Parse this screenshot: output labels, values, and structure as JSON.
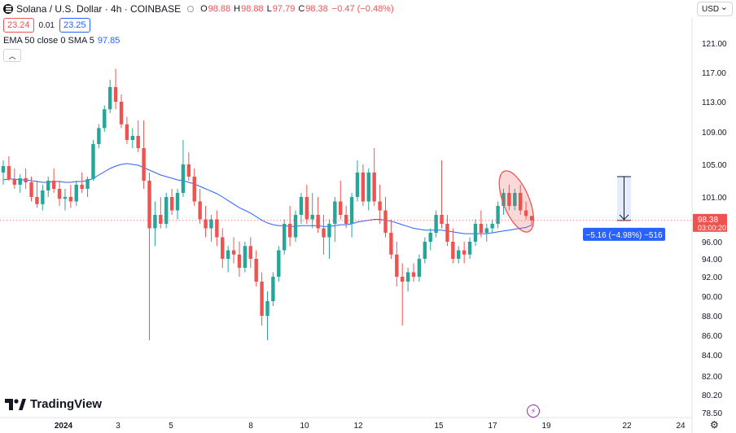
{
  "header": {
    "title": "Solana / U.S. Dollar · 4h · COINBASE",
    "open_label": "O",
    "open": "98.88",
    "high_label": "H",
    "high": "98.88",
    "low_label": "L",
    "low": "97.79",
    "close_label": "C",
    "close": "98.38",
    "change": "−0.47 (−0.48%)"
  },
  "trade": {
    "sell": "23.24",
    "spread": "0.01",
    "buy": "23.25"
  },
  "indicator": {
    "label": "EMA 50 close 0 SMA 5",
    "value": "97.85"
  },
  "currency": "USD",
  "brand": "TradingView",
  "colors": {
    "up": "#26a69a",
    "down": "#ef5350",
    "ema": "#2962ff",
    "measure": "#2962ff"
  },
  "icons": [
    "solana-logo-icon",
    "collapse-chevron-icon",
    "tradingview-logo-icon",
    "lightning-icon",
    "settings-gear-icon"
  ],
  "chart_data": {
    "type": "candlestick",
    "timeframe": "4h",
    "y_axis_ticks": [
      "121.00",
      "117.00",
      "113.00",
      "109.00",
      "105.00",
      "101.00",
      "96.00",
      "94.00",
      "92.00",
      "90.00",
      "88.00",
      "86.00",
      "84.00",
      "82.00",
      "80.20",
      "78.50"
    ],
    "x_axis_ticks": [
      "2024",
      "3",
      "5",
      "8",
      "10",
      "12",
      "15",
      "17",
      "19",
      "22",
      "24"
    ],
    "last_price": "98.38",
    "countdown": "03:00:20",
    "measurement_label": "−5.16 (−4.98%) −516",
    "candles": [
      [
        104.0,
        105.5,
        102.5,
        104.8
      ],
      [
        104.8,
        106.0,
        103.0,
        103.2
      ],
      [
        103.2,
        104.5,
        102.0,
        102.5
      ],
      [
        102.5,
        103.8,
        101.5,
        103.3
      ],
      [
        103.3,
        104.5,
        102.0,
        102.8
      ],
      [
        102.8,
        103.5,
        100.5,
        101.0
      ],
      [
        101.0,
        103.0,
        99.8,
        100.2
      ],
      [
        100.2,
        102.5,
        99.5,
        101.8
      ],
      [
        101.8,
        103.5,
        101.0,
        103.0
      ],
      [
        103.0,
        104.5,
        101.5,
        102.0
      ],
      [
        102.0,
        103.0,
        100.0,
        100.8
      ],
      [
        100.8,
        102.0,
        99.5,
        101.0
      ],
      [
        101.0,
        102.5,
        99.8,
        100.5
      ],
      [
        100.5,
        103.0,
        100.0,
        102.5
      ],
      [
        102.5,
        104.0,
        101.5,
        102.0
      ],
      [
        102.0,
        103.5,
        101.0,
        103.2
      ],
      [
        103.2,
        108.0,
        103.0,
        107.5
      ],
      [
        107.5,
        110.0,
        107.0,
        109.5
      ],
      [
        109.5,
        112.5,
        109.0,
        112.0
      ],
      [
        112.0,
        116.0,
        111.5,
        115.0
      ],
      [
        115.0,
        117.5,
        112.0,
        113.0
      ],
      [
        113.0,
        114.0,
        109.5,
        110.0
      ],
      [
        110.0,
        111.0,
        107.5,
        108.0
      ],
      [
        108.0,
        109.5,
        107.0,
        108.5
      ],
      [
        108.5,
        110.5,
        106.5,
        107.0
      ],
      [
        107.0,
        110.5,
        102.0,
        103.0
      ],
      [
        103.0,
        104.0,
        85.5,
        97.5
      ],
      [
        97.5,
        100.5,
        95.5,
        99.0
      ],
      [
        99.0,
        101.0,
        97.5,
        98.0
      ],
      [
        98.0,
        101.5,
        97.5,
        101.0
      ],
      [
        101.0,
        102.0,
        99.0,
        99.5
      ],
      [
        99.5,
        102.0,
        98.5,
        101.5
      ],
      [
        101.5,
        108.0,
        101.0,
        105.0
      ],
      [
        105.0,
        106.5,
        103.0,
        103.5
      ],
      [
        103.5,
        104.5,
        100.0,
        100.5
      ],
      [
        100.5,
        102.0,
        98.0,
        98.5
      ],
      [
        98.5,
        100.0,
        96.5,
        97.5
      ],
      [
        97.5,
        99.0,
        96.0,
        98.5
      ],
      [
        98.5,
        99.5,
        95.5,
        96.5
      ],
      [
        96.5,
        97.5,
        93.0,
        94.0
      ],
      [
        94.0,
        95.5,
        92.5,
        95.0
      ],
      [
        95.0,
        96.5,
        93.5,
        94.5
      ],
      [
        94.5,
        96.0,
        92.0,
        93.0
      ],
      [
        93.0,
        96.0,
        92.5,
        95.5
      ],
      [
        95.5,
        96.5,
        93.0,
        94.0
      ],
      [
        94.0,
        95.0,
        91.0,
        91.5
      ],
      [
        91.5,
        92.5,
        87.0,
        88.0
      ],
      [
        88.0,
        90.5,
        85.5,
        89.5
      ],
      [
        89.5,
        92.5,
        89.0,
        92.0
      ],
      [
        92.0,
        95.5,
        91.5,
        95.0
      ],
      [
        95.0,
        98.5,
        94.5,
        98.0
      ],
      [
        98.0,
        100.0,
        95.5,
        96.5
      ],
      [
        96.5,
        99.5,
        96.0,
        99.0
      ],
      [
        99.0,
        101.5,
        98.0,
        101.0
      ],
      [
        101.0,
        102.5,
        98.0,
        98.5
      ],
      [
        98.5,
        101.5,
        97.5,
        99.0
      ],
      [
        99.0,
        101.0,
        97.0,
        97.5
      ],
      [
        97.5,
        99.0,
        94.5,
        96.5
      ],
      [
        96.5,
        98.5,
        94.0,
        98.0
      ],
      [
        98.0,
        101.0,
        96.0,
        100.5
      ],
      [
        100.5,
        103.0,
        98.5,
        99.0
      ],
      [
        99.0,
        100.0,
        97.5,
        98.0
      ],
      [
        98.0,
        101.5,
        96.5,
        101.0
      ],
      [
        101.0,
        105.5,
        100.5,
        104.0
      ],
      [
        104.0,
        105.0,
        100.0,
        100.5
      ],
      [
        100.5,
        104.5,
        99.5,
        104.0
      ],
      [
        104.0,
        107.0,
        100.0,
        100.5
      ],
      [
        100.5,
        102.5,
        98.0,
        99.5
      ],
      [
        99.5,
        101.0,
        96.5,
        97.0
      ],
      [
        97.0,
        98.5,
        94.0,
        94.5
      ],
      [
        94.5,
        96.0,
        91.0,
        92.0
      ],
      [
        92.0,
        93.5,
        87.0,
        91.5
      ],
      [
        91.5,
        93.0,
        90.5,
        92.5
      ],
      [
        92.5,
        93.5,
        91.5,
        92.0
      ],
      [
        92.0,
        94.5,
        91.5,
        94.0
      ],
      [
        94.0,
        96.5,
        93.5,
        96.0
      ],
      [
        96.0,
        97.5,
        95.0,
        97.0
      ],
      [
        97.0,
        99.5,
        96.5,
        99.0
      ],
      [
        99.0,
        105.5,
        97.5,
        98.0
      ],
      [
        98.0,
        99.0,
        95.5,
        96.0
      ],
      [
        96.0,
        97.5,
        93.5,
        94.0
      ],
      [
        94.0,
        95.5,
        93.5,
        95.0
      ],
      [
        95.0,
        96.0,
        93.5,
        94.5
      ],
      [
        94.5,
        96.5,
        94.0,
        96.0
      ],
      [
        96.0,
        98.5,
        95.5,
        98.0
      ],
      [
        98.0,
        99.5,
        96.5,
        97.0
      ],
      [
        97.0,
        98.0,
        96.0,
        97.5
      ],
      [
        97.5,
        98.5,
        97.0,
        98.0
      ],
      [
        98.0,
        100.5,
        97.5,
        100.0
      ],
      [
        100.0,
        102.0,
        99.0,
        101.5
      ],
      [
        101.5,
        102.5,
        99.5,
        100.0
      ],
      [
        100.0,
        102.0,
        99.5,
        101.5
      ],
      [
        101.5,
        102.5,
        99.0,
        99.5
      ],
      [
        99.5,
        100.5,
        98.5,
        98.88
      ],
      [
        98.88,
        98.88,
        97.79,
        98.38
      ]
    ],
    "ema": [
      103.1,
      103.2,
      103.2,
      103.1,
      103.1,
      103.0,
      102.9,
      102.8,
      102.8,
      102.9,
      102.9,
      102.8,
      102.8,
      102.9,
      102.9,
      103.0,
      103.3,
      103.7,
      104.1,
      104.5,
      104.8,
      105.0,
      105.1,
      105.0,
      104.9,
      104.6,
      104.3,
      104.0,
      103.7,
      103.5,
      103.3,
      103.1,
      103.0,
      102.8,
      102.6,
      102.3,
      102.0,
      101.7,
      101.4,
      101.0,
      100.6,
      100.2,
      99.8,
      99.5,
      99.2,
      98.8,
      98.4,
      98.1,
      97.9,
      97.8,
      97.8,
      97.7,
      97.7,
      97.8,
      97.8,
      97.8,
      97.8,
      97.7,
      97.7,
      97.8,
      97.9,
      97.9,
      98.0,
      98.2,
      98.3,
      98.4,
      98.5,
      98.5,
      98.4,
      98.3,
      98.1,
      97.9,
      97.7,
      97.5,
      97.4,
      97.3,
      97.3,
      97.3,
      97.3,
      97.2,
      97.1,
      97.0,
      96.9,
      96.9,
      96.9,
      96.9,
      96.9,
      97.0,
      97.1,
      97.2,
      97.3,
      97.4,
      97.5,
      97.6,
      97.85
    ]
  }
}
